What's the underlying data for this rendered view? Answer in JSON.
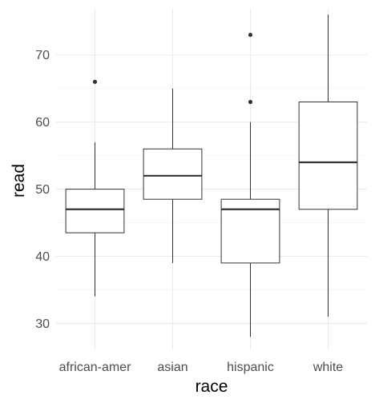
{
  "chart_data": {
    "type": "box",
    "xlabel": "race",
    "ylabel": "read",
    "categories": [
      "african-amer",
      "asian",
      "hispanic",
      "white"
    ],
    "boxes": [
      {
        "category": "african-amer",
        "min": 34,
        "q1": 43.5,
        "median": 47,
        "q3": 50,
        "max": 57,
        "outliers": [
          66
        ]
      },
      {
        "category": "asian",
        "min": 39,
        "q1": 48.5,
        "median": 52,
        "q3": 56,
        "max": 65,
        "outliers": []
      },
      {
        "category": "hispanic",
        "min": 28,
        "q1": 39,
        "median": 47,
        "q3": 48.5,
        "max": 60,
        "outliers": [
          63,
          73
        ]
      },
      {
        "category": "white",
        "min": 31,
        "q1": 47,
        "median": 54,
        "q3": 63,
        "max": 76,
        "outliers": []
      }
    ],
    "yticks": [
      30,
      40,
      50,
      60,
      70
    ],
    "ylim": [
      26,
      77
    ],
    "grid": true,
    "theme": "minimal",
    "colors": {
      "box_fill": "#ffffff",
      "box_line": "#333333",
      "grid": "#ebebeb"
    }
  }
}
